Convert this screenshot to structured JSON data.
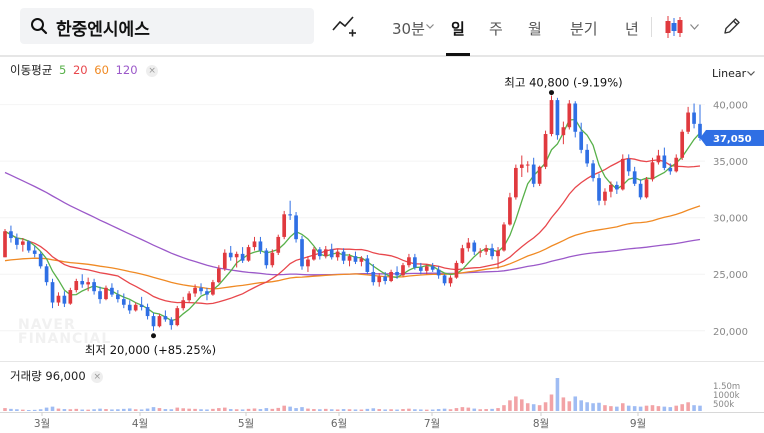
{
  "toolbar": {
    "search_text": "한중엔시에스",
    "intervals": [
      "30분",
      "일",
      "주",
      "월",
      "분기",
      "년"
    ],
    "active_interval": "일",
    "colors": {
      "up": "#e0393e",
      "down": "#2f6fe4",
      "active": "#111111"
    }
  },
  "ma_legend": {
    "label": "이동평균",
    "periods": [
      {
        "label": "5",
        "color": "#58b14a"
      },
      {
        "label": "20",
        "color": "#e8474c"
      },
      {
        "label": "60",
        "color": "#f08a24"
      },
      {
        "label": "120",
        "color": "#9b59c9"
      }
    ],
    "close_symbol": "×"
  },
  "scale_toggle": "Linear",
  "volume_legend": {
    "label": "거래량 96,000",
    "close_symbol": "×"
  },
  "watermark": {
    "line1": "NAVER",
    "line2": "FINANCIAL"
  },
  "chart_data": {
    "type": "candlestick",
    "price_axis": {
      "ticks": [
        "40,000",
        "35,000",
        "30,000",
        "25,000",
        "20,000"
      ],
      "ylim": [
        18300,
        42000
      ]
    },
    "volume_axis": {
      "ticks": [
        "1.50m",
        "1000k",
        "500k"
      ]
    },
    "x_axis": {
      "ticks": [
        "3월",
        "4월",
        "5월",
        "6월",
        "7월",
        "8월",
        "9월"
      ]
    },
    "current_price": {
      "label": "37,050",
      "value": 37050
    },
    "high_annotation": {
      "text": "최고 40,800 (-9.19%)",
      "value": 40800
    },
    "low_annotation": {
      "text": "최저 20,000 (+85.25%)",
      "value": 20000
    },
    "series": [
      {
        "name": "5",
        "color": "#58b14a"
      },
      {
        "name": "20",
        "color": "#e8474c"
      },
      {
        "name": "60",
        "color": "#f08a24"
      },
      {
        "name": "120",
        "color": "#9b59c9"
      }
    ],
    "candles": [
      [
        26500,
        29000,
        26500,
        28800
      ],
      [
        28800,
        29300,
        27800,
        28200
      ],
      [
        28200,
        28600,
        27200,
        27600
      ],
      [
        27600,
        28200,
        27000,
        27900
      ],
      [
        27900,
        28000,
        26900,
        27100
      ],
      [
        27100,
        27500,
        26500,
        26800
      ],
      [
        26800,
        27000,
        25500,
        25700
      ],
      [
        25700,
        25900,
        24000,
        24300
      ],
      [
        24300,
        24600,
        22000,
        22500
      ],
      [
        22500,
        23400,
        22200,
        23100
      ],
      [
        23100,
        23500,
        22100,
        22400
      ],
      [
        22400,
        23800,
        22300,
        23600
      ],
      [
        23600,
        24600,
        23400,
        24400
      ],
      [
        24400,
        25000,
        23800,
        24100
      ],
      [
        24100,
        24700,
        23500,
        24300
      ],
      [
        24300,
        24600,
        23200,
        23500
      ],
      [
        23500,
        23900,
        22400,
        22800
      ],
      [
        22800,
        24000,
        22700,
        23800
      ],
      [
        23800,
        24200,
        23000,
        23200
      ],
      [
        23200,
        23600,
        22500,
        22800
      ],
      [
        22800,
        23300,
        22000,
        22300
      ],
      [
        22300,
        22700,
        21500,
        21800
      ],
      [
        21800,
        22500,
        21700,
        22300
      ],
      [
        22300,
        23000,
        21800,
        22100
      ],
      [
        22100,
        22400,
        21000,
        21300
      ],
      [
        21300,
        21600,
        20000,
        20400
      ],
      [
        20400,
        21500,
        20300,
        21300
      ],
      [
        21300,
        21800,
        20800,
        21000
      ],
      [
        21000,
        21200,
        20100,
        20500
      ],
      [
        20500,
        22200,
        20400,
        22000
      ],
      [
        22000,
        23000,
        21800,
        22700
      ],
      [
        22700,
        23500,
        22500,
        23300
      ],
      [
        23300,
        24100,
        23000,
        23800
      ],
      [
        23800,
        24200,
        23200,
        23500
      ],
      [
        23500,
        23800,
        22700,
        23200
      ],
      [
        23200,
        24500,
        23100,
        24300
      ],
      [
        24300,
        25800,
        24200,
        25500
      ],
      [
        25500,
        27200,
        25300,
        26900
      ],
      [
        26900,
        27500,
        26200,
        26500
      ],
      [
        26500,
        27000,
        25600,
        26800
      ],
      [
        26800,
        27400,
        26000,
        26200
      ],
      [
        26200,
        27600,
        26100,
        27400
      ],
      [
        27400,
        28300,
        27100,
        27900
      ],
      [
        27900,
        28300,
        26800,
        27100
      ],
      [
        27100,
        27300,
        25500,
        25800
      ],
      [
        25800,
        27200,
        25600,
        26900
      ],
      [
        26900,
        28500,
        26700,
        28300
      ],
      [
        28300,
        30600,
        28100,
        30300
      ],
      [
        30300,
        31500,
        29800,
        30200
      ],
      [
        30200,
        30500,
        27800,
        28100
      ],
      [
        28100,
        28400,
        25400,
        25700
      ],
      [
        25700,
        26600,
        25200,
        26300
      ],
      [
        26300,
        27400,
        26200,
        27200
      ],
      [
        27200,
        27400,
        26300,
        26600
      ],
      [
        26600,
        27500,
        26400,
        27200
      ],
      [
        27200,
        27700,
        26300,
        26500
      ],
      [
        26500,
        27200,
        26200,
        27000
      ],
      [
        27000,
        27300,
        25900,
        26200
      ],
      [
        26200,
        26800,
        25700,
        26600
      ],
      [
        26600,
        27000,
        25900,
        26100
      ],
      [
        26100,
        26600,
        25700,
        26400
      ],
      [
        26400,
        26700,
        25000,
        25200
      ],
      [
        25200,
        25900,
        24000,
        24300
      ],
      [
        24300,
        25100,
        23900,
        24800
      ],
      [
        24800,
        25200,
        24100,
        24400
      ],
      [
        24400,
        25400,
        24300,
        25200
      ],
      [
        25200,
        25700,
        24600,
        24900
      ],
      [
        24900,
        26000,
        24800,
        25800
      ],
      [
        25800,
        26800,
        25600,
        26500
      ],
      [
        26500,
        26800,
        25400,
        25600
      ],
      [
        25600,
        26000,
        25000,
        25300
      ],
      [
        25300,
        25900,
        25000,
        25700
      ],
      [
        25700,
        26000,
        25200,
        25400
      ],
      [
        25400,
        25700,
        24600,
        24900
      ],
      [
        24900,
        25000,
        24000,
        24200
      ],
      [
        24200,
        24900,
        23900,
        24700
      ],
      [
        24700,
        26200,
        24600,
        26000
      ],
      [
        26000,
        27600,
        25900,
        27300
      ],
      [
        27300,
        28200,
        27000,
        27800
      ],
      [
        27800,
        28000,
        26700,
        27000
      ],
      [
        27000,
        27300,
        26500,
        27000
      ],
      [
        27000,
        27600,
        26700,
        27300
      ],
      [
        27300,
        27700,
        26300,
        26600
      ],
      [
        26600,
        27400,
        25500,
        27100
      ],
      [
        27100,
        29600,
        27000,
        29400
      ],
      [
        29400,
        32200,
        29300,
        31800
      ],
      [
        31800,
        34700,
        31600,
        34400
      ],
      [
        34400,
        35500,
        33600,
        34700
      ],
      [
        34700,
        35000,
        34000,
        34700
      ],
      [
        34700,
        35300,
        32700,
        33000
      ],
      [
        33000,
        34600,
        32800,
        34500
      ],
      [
        34500,
        37700,
        34300,
        37400
      ],
      [
        37400,
        40800,
        37200,
        40400
      ],
      [
        40400,
        40600,
        36900,
        37300
      ],
      [
        37300,
        38500,
        36500,
        38000
      ],
      [
        38000,
        40400,
        37800,
        40100
      ],
      [
        40100,
        40300,
        37100,
        37600
      ],
      [
        37600,
        38400,
        35700,
        36000
      ],
      [
        36000,
        36500,
        34500,
        34800
      ],
      [
        34800,
        35100,
        33200,
        33500
      ],
      [
        33500,
        33900,
        31100,
        31500
      ],
      [
        31500,
        32600,
        31100,
        32300
      ],
      [
        32300,
        33200,
        31800,
        32900
      ],
      [
        32900,
        33200,
        32100,
        32500
      ],
      [
        32500,
        35600,
        32400,
        35200
      ],
      [
        35200,
        35600,
        33700,
        34100
      ],
      [
        34100,
        34500,
        32800,
        33000
      ],
      [
        33000,
        33400,
        31600,
        31800
      ],
      [
        31800,
        33600,
        31700,
        33400
      ],
      [
        33400,
        35300,
        33200,
        34900
      ],
      [
        34900,
        36000,
        34700,
        35500
      ],
      [
        35500,
        36200,
        34200,
        34400
      ],
      [
        34400,
        34800,
        33800,
        34100
      ],
      [
        34100,
        35600,
        34000,
        35300
      ],
      [
        35300,
        37800,
        35100,
        37600
      ],
      [
        37600,
        39800,
        37400,
        39300
      ],
      [
        39300,
        40100,
        37900,
        38300
      ],
      [
        38300,
        40000,
        36800,
        37050
      ]
    ],
    "volumes": [
      30,
      22,
      18,
      14,
      10,
      12,
      18,
      35,
      45,
      25,
      20,
      18,
      22,
      15,
      14,
      18,
      24,
      20,
      16,
      18,
      22,
      26,
      18,
      16,
      25,
      40,
      30,
      20,
      18,
      35,
      28,
      24,
      22,
      18,
      16,
      22,
      30,
      35,
      20,
      18,
      16,
      22,
      26,
      20,
      30,
      22,
      32,
      55,
      45,
      30,
      40,
      25,
      20,
      18,
      22,
      18,
      16,
      20,
      18,
      16,
      15,
      22,
      28,
      20,
      16,
      18,
      15,
      20,
      24,
      18,
      16,
      14,
      15,
      20,
      24,
      18,
      30,
      40,
      35,
      25,
      18,
      20,
      22,
      30,
      60,
      110,
      150,
      120,
      80,
      70,
      60,
      90,
      170,
      340,
      140,
      100,
      150,
      110,
      90,
      80,
      85,
      60,
      50,
      45,
      80,
      55,
      50,
      45,
      55,
      60,
      50,
      45,
      40,
      55,
      70,
      90,
      60,
      55
    ]
  }
}
